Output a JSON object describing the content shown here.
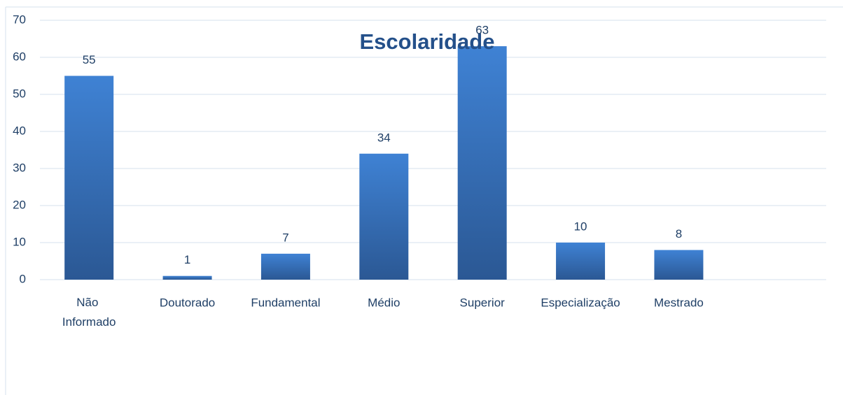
{
  "chart_data": {
    "type": "bar",
    "title": "Escolaridade",
    "categories": [
      "Não Informado",
      "Doutorado",
      "Fundamental",
      "Médio",
      "Superior",
      "Especialização",
      "Mestrado"
    ],
    "values": [
      55,
      1,
      7,
      34,
      63,
      10,
      8
    ],
    "color": "#3a78c6",
    "ylim": [
      0,
      70
    ],
    "yticks": [
      0,
      10,
      20,
      30,
      40,
      50,
      60,
      70
    ],
    "grid": true
  }
}
